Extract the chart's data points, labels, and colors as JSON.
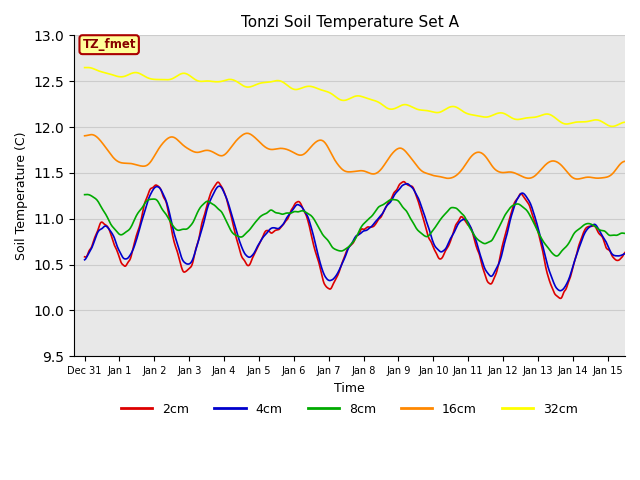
{
  "title": "Tonzi Soil Temperature Set A",
  "xlabel": "Time",
  "ylabel": "Soil Temperature (C)",
  "ylim": [
    9.5,
    13.0
  ],
  "label_box_text": "TZ_fmet",
  "label_box_color": "#ffff99",
  "label_box_edge": "#aa0000",
  "label_box_text_color": "#880000",
  "plot_bg_color": "#e8e8e8",
  "fig_bg_color": "#ffffff",
  "series_colors": {
    "2cm": "#dd0000",
    "4cm": "#0000cc",
    "8cm": "#00aa00",
    "16cm": "#ff8800",
    "32cm": "#ffff00"
  },
  "tick_labels": [
    "Dec 31",
    "Jan 1",
    "Jan 2",
    "Jan 3",
    "Jan 4",
    "Jan 5",
    "Jan 6",
    "Jan 7",
    "Jan 8",
    "Jan 9",
    "Jan 10",
    "Jan 11",
    "Jan 12",
    "Jan 13",
    "Jan 14",
    "Jan 15"
  ],
  "yticks": [
    9.5,
    10.0,
    10.5,
    11.0,
    11.5,
    12.0,
    12.5,
    13.0
  ],
  "grid_color": "#cccccc",
  "linewidth": 1.2
}
